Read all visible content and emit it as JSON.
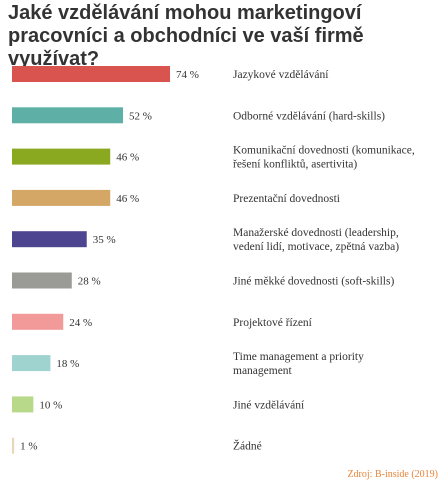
{
  "title": "Jaké vzdělávání mohou marketingoví pracovníci a obchodníci ve vaší firmě využívat?",
  "source": "Zdroj: B-inside (2019)",
  "chart_data": {
    "type": "bar",
    "orientation": "horizontal",
    "title": "Jaké vzdělávání mohou marketingoví pracovníci a obchodníci ve vaší firmě využívat?",
    "value_suffix": " %",
    "xlim": [
      0,
      74
    ],
    "grid": false,
    "categories": [
      [
        "Jazykové vzdělávání"
      ],
      [
        "Odborné vzdělávání (hard-skills)"
      ],
      [
        "Komunikační dovednosti (komunikace,",
        "řešení konfliktů, asertivita)"
      ],
      [
        "Prezentační dovednosti"
      ],
      [
        "Manažerské dovednosti (leadership,",
        "vedení lidí, motivace, zpětná vazba)"
      ],
      [
        "Jiné měkké dovednosti (soft-skills)"
      ],
      [
        "Projektové řízení"
      ],
      [
        "Time management a priority",
        "management"
      ],
      [
        "Jiné vzdělávání"
      ],
      [
        "Žádné"
      ]
    ],
    "values": [
      74,
      52,
      46,
      46,
      35,
      28,
      24,
      18,
      10,
      1
    ],
    "colors": [
      "#d9534f",
      "#5eb0a6",
      "#8ba821",
      "#d4a766",
      "#4d4590",
      "#9a9a96",
      "#f29a9a",
      "#9fd3cf",
      "#b9d98a",
      "#e8d6b8"
    ]
  }
}
